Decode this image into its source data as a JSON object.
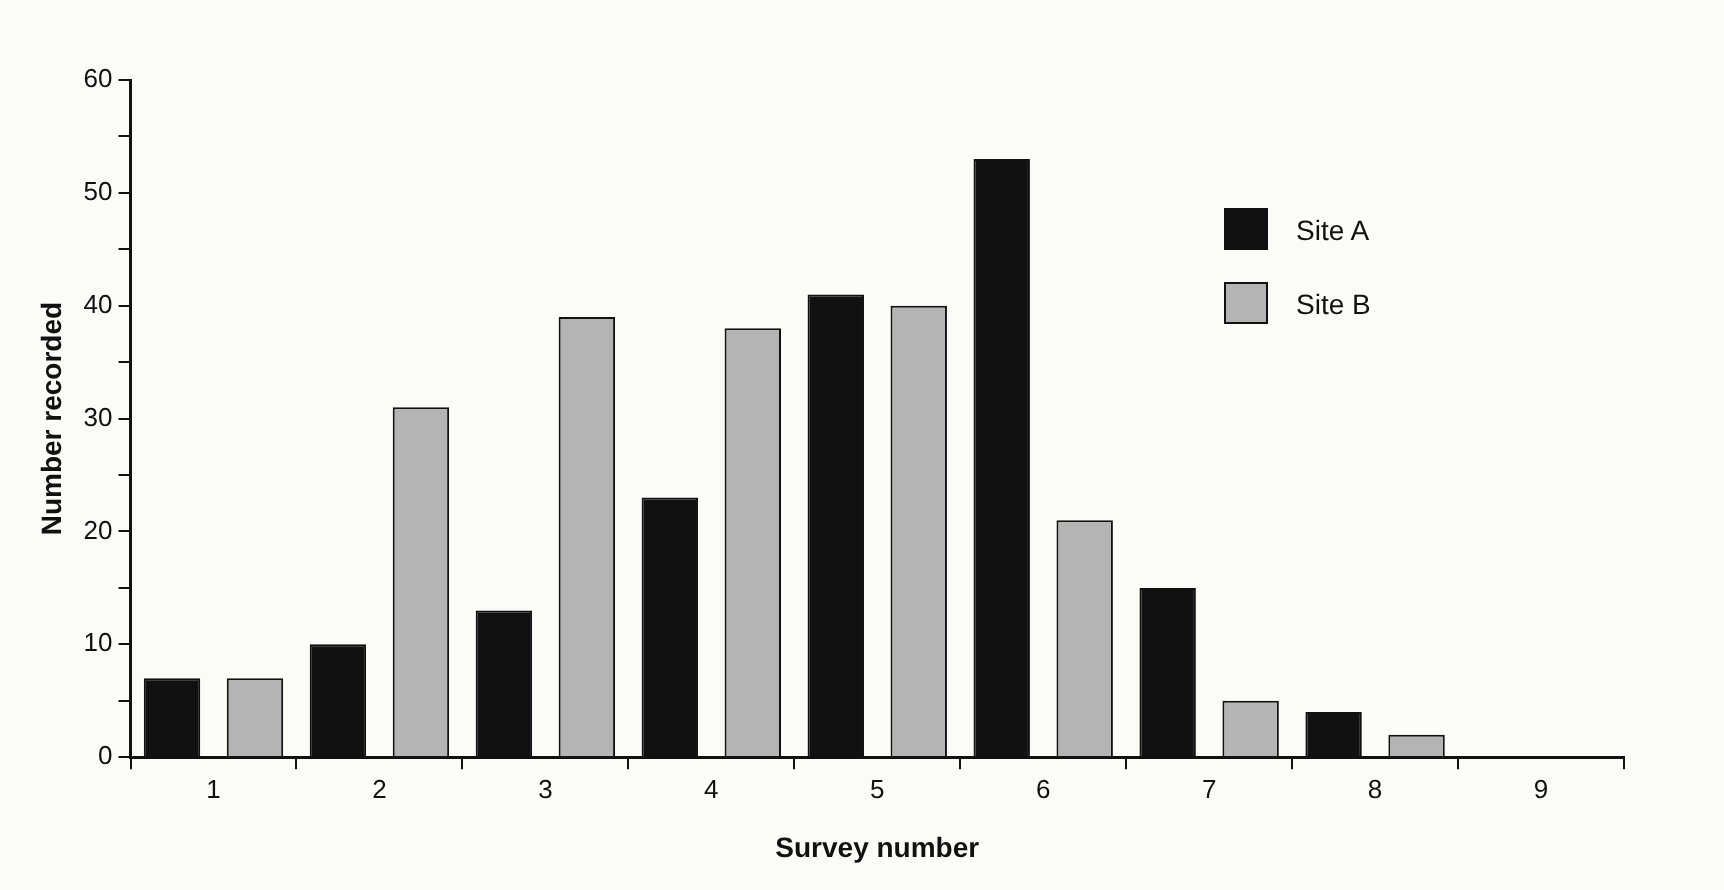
{
  "chart_data": {
    "type": "bar",
    "xlabel": "Survey number",
    "ylabel": "Number recorded",
    "categories": [
      "1",
      "2",
      "3",
      "4",
      "5",
      "6",
      "7",
      "8",
      "9"
    ],
    "series": [
      {
        "name": "Site A",
        "color": "#111111",
        "values": [
          7,
          10,
          13,
          23,
          41,
          53,
          15,
          4,
          0
        ]
      },
      {
        "name": "Site B",
        "color": "#b4b4b4",
        "values": [
          7,
          31,
          39,
          38,
          40,
          21,
          5,
          2,
          0
        ]
      }
    ],
    "ylim": [
      0,
      60
    ],
    "yticks": [
      0,
      {
        "value": 5,
        "label": null
      },
      10,
      {
        "value": 15,
        "label": null
      },
      20,
      {
        "value": 25,
        "label": null
      },
      30,
      {
        "value": 35,
        "label": null
      },
      40,
      {
        "value": 45,
        "label": null
      },
      50,
      {
        "value": 55,
        "label": null
      },
      60
    ],
    "grid": false,
    "legend": "top right"
  }
}
